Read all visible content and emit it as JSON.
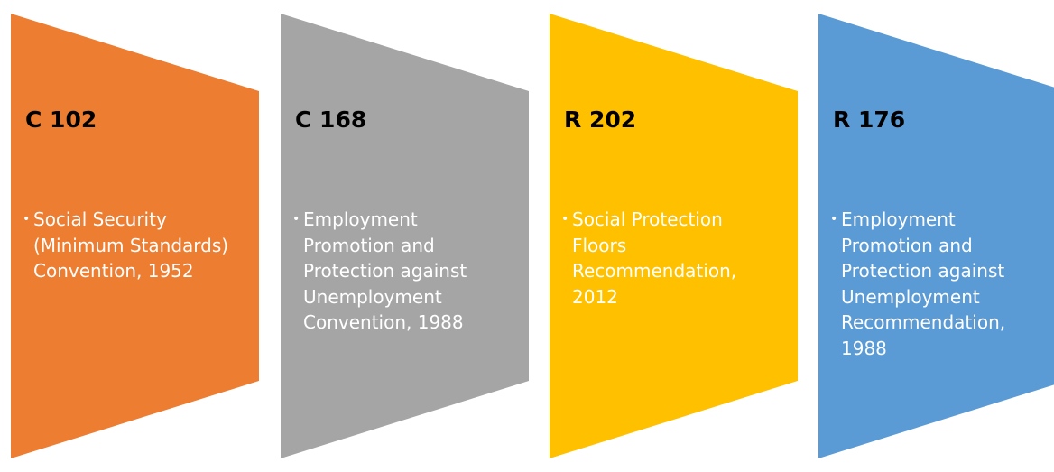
{
  "panels": [
    {
      "code": "C 102",
      "description": "Social Security (Minimum Standards) Convention, 1952",
      "fill": "#ED7D31"
    },
    {
      "code": "C 168",
      "description": "Employment Promotion and Protection against Unemployment Convention, 1988",
      "fill": "#A5A5A5"
    },
    {
      "code": "R 202",
      "description": "Social Protection Floors Recommendation, 2012",
      "fill": "#FFC000"
    },
    {
      "code": "R 176",
      "description": "Employment Promotion and Protection against Unemployment Recommendation, 1988",
      "fill": "#5B9BD5"
    }
  ],
  "bullet_glyph": "•"
}
